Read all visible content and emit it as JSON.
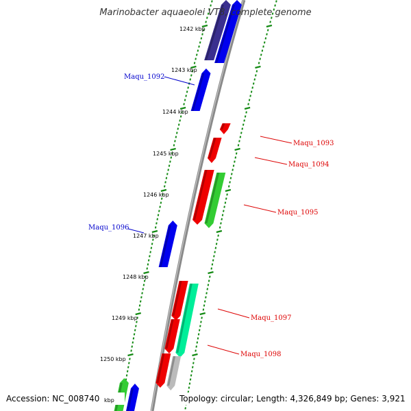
{
  "map": {
    "title": "Marinobacter aquaeolei VT8, complete genome",
    "accession_text": "Accession: NC_008740",
    "topology_text": "Topology: circular; Length: 4,326,849 bp; Genes: 3,921",
    "partial_kbp_label": "kbp"
  },
  "colors": {
    "backbone": "#8a8a8a",
    "tick": "#138a13",
    "blue_gene": "#0000ee",
    "red_gene": "#ee0000",
    "green_gene": "#33cc33",
    "teal_gene": "#00ee99",
    "navy_gene": "#3a2f8f",
    "gray_gene": "#bbbbbb",
    "label_blue": "#0000cc",
    "label_red": "#dd0000"
  },
  "kbp_labels": [
    "1242 kbp",
    "1243 kbp",
    "1244 kbp",
    "1245 kbp",
    "1246 kbp",
    "1247 kbp",
    "1248 kbp",
    "1249 kbp",
    "1250 kbp"
  ],
  "gene_labels": [
    {
      "name": "Maqu_1092",
      "side": "left",
      "color": "blue"
    },
    {
      "name": "Maqu_1093",
      "side": "right",
      "color": "red"
    },
    {
      "name": "Maqu_1094",
      "side": "right",
      "color": "red"
    },
    {
      "name": "Maqu_1095",
      "side": "right",
      "color": "red"
    },
    {
      "name": "Maqu_1096",
      "side": "left",
      "color": "blue"
    },
    {
      "name": "Maqu_1097",
      "side": "right",
      "color": "red"
    },
    {
      "name": "Maqu_1098",
      "side": "right",
      "color": "red"
    }
  ],
  "genes": [
    {
      "type": "navy",
      "strand": "top"
    },
    {
      "type": "blue",
      "strand": "top"
    },
    {
      "type": "blue",
      "strand": "top"
    },
    {
      "type": "red",
      "strand": "bottom"
    },
    {
      "type": "red",
      "strand": "bottom"
    },
    {
      "type": "red",
      "strand": "bottom"
    },
    {
      "type": "green",
      "strand": "bottom"
    },
    {
      "type": "blue",
      "strand": "top"
    },
    {
      "type": "red",
      "strand": "bottom"
    },
    {
      "type": "teal",
      "strand": "bottom"
    },
    {
      "type": "red",
      "strand": "bottom"
    },
    {
      "type": "red",
      "strand": "bottom"
    },
    {
      "type": "gray",
      "strand": "bottom"
    },
    {
      "type": "green",
      "strand": "top"
    },
    {
      "type": "blue",
      "strand": "top"
    }
  ]
}
